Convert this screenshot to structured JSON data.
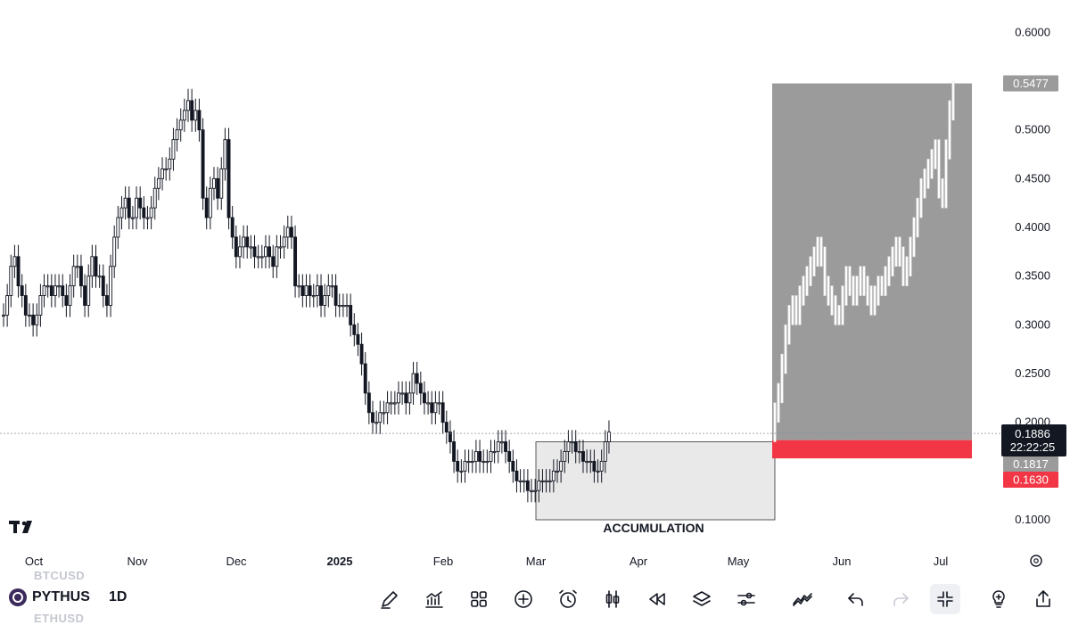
{
  "symbol": "PYTHUS",
  "timeframe": "1D",
  "ghost_symbols": [
    "BTCUSD",
    "ETHUSD"
  ],
  "toolbar": [
    "pen-icon",
    "indicators-icon",
    "grid-icon",
    "plus-circle-icon",
    "alarm-icon",
    "candles-icon",
    "replay-icon",
    "layers-icon",
    "settings-sliders-icon",
    "trend-icon",
    "undo-icon",
    "redo-icon",
    "collapse-icon",
    "lightbulb-icon",
    "share-icon"
  ],
  "chart_data": {
    "type": "candlestick",
    "xlabel": "",
    "ylabel": "",
    "x_ticks": [
      "Oct",
      "Nov",
      "Dec",
      "2025",
      "Feb",
      "Mar",
      "Apr",
      "May",
      "Jun",
      "Jul"
    ],
    "y_ticks": [
      "0.6000",
      "0.5000",
      "0.4500",
      "0.4000",
      "0.3500",
      "0.3000",
      "0.2500",
      "0.2000",
      "0.1000"
    ],
    "ylim": [
      0.1,
      0.6
    ],
    "grid": false,
    "price_labels": {
      "current": "0.1886",
      "countdown": "22:22:25",
      "entry": "0.1817",
      "stop": "0.1630",
      "target": "0.5477"
    },
    "annotation": "ACCUMULATION",
    "accumulation_zone": {
      "from": "Mar",
      "to": "mid-May",
      "low": 0.1,
      "high": 0.18
    },
    "long_position": {
      "entry": 0.1817,
      "stop": 0.163,
      "target": 0.5477
    },
    "colors": {
      "candle": "#131722",
      "projection": "#ffffff",
      "target_zone": "#9b9b9b",
      "stop_zone": "#f23645",
      "box": "#e9e9e9",
      "current_label": "#131722",
      "target_label": "#9b9b9b"
    },
    "series": [
      {
        "values": [
          0.31,
          0.33,
          0.36,
          0.37,
          0.34,
          0.33,
          0.31,
          0.31,
          0.3,
          0.31,
          0.33,
          0.34,
          0.34,
          0.33,
          0.34,
          0.34,
          0.33,
          0.32,
          0.34,
          0.36,
          0.36,
          0.34,
          0.32,
          0.35,
          0.37,
          0.35,
          0.35,
          0.33,
          0.32,
          0.36,
          0.39,
          0.41,
          0.42,
          0.43,
          0.41,
          0.41,
          0.43,
          0.42,
          0.41,
          0.41,
          0.42,
          0.44,
          0.45,
          0.46,
          0.46,
          0.47,
          0.49,
          0.5,
          0.51,
          0.52,
          0.53,
          0.51,
          0.52,
          0.5,
          0.43,
          0.41,
          0.44,
          0.45,
          0.43,
          0.46,
          0.49,
          0.41,
          0.39,
          0.37,
          0.38,
          0.39,
          0.38,
          0.38,
          0.37,
          0.37,
          0.37,
          0.38,
          0.37,
          0.36,
          0.38,
          0.38,
          0.39,
          0.4,
          0.39,
          0.34,
          0.34,
          0.33,
          0.34,
          0.33,
          0.33,
          0.34,
          0.32,
          0.33,
          0.34,
          0.34,
          0.32,
          0.32,
          0.32,
          0.32,
          0.3,
          0.29,
          0.28,
          0.26,
          0.23,
          0.21,
          0.2,
          0.2,
          0.21,
          0.21,
          0.22,
          0.22,
          0.22,
          0.23,
          0.23,
          0.22,
          0.23,
          0.25,
          0.24,
          0.23,
          0.22,
          0.22,
          0.21,
          0.22,
          0.22,
          0.2,
          0.19,
          0.18,
          0.16,
          0.15,
          0.15,
          0.16,
          0.16,
          0.16,
          0.17,
          0.16,
          0.16,
          0.16,
          0.17,
          0.17,
          0.18,
          0.18,
          0.17,
          0.16,
          0.15,
          0.14,
          0.14,
          0.14,
          0.13,
          0.13,
          0.13,
          0.14,
          0.14,
          0.14,
          0.14,
          0.15,
          0.15,
          0.16,
          0.17,
          0.18,
          0.18,
          0.17,
          0.17,
          0.16,
          0.16,
          0.16,
          0.15,
          0.15,
          0.16,
          0.18,
          0.19
        ]
      },
      {
        "name": "",
        "values": [
          0.21,
          0.23,
          0.26,
          0.29,
          0.31,
          0.32,
          0.31,
          0.33,
          0.34,
          0.35,
          0.36,
          0.37,
          0.38,
          0.37,
          0.34,
          0.33,
          0.32,
          0.31,
          0.31,
          0.33,
          0.35,
          0.34,
          0.33,
          0.34,
          0.35,
          0.34,
          0.33,
          0.32,
          0.33,
          0.34,
          0.34,
          0.35,
          0.36,
          0.37,
          0.38,
          0.37,
          0.35,
          0.36,
          0.38,
          0.4,
          0.42,
          0.44,
          0.45,
          0.46,
          0.47,
          0.48,
          0.44,
          0.43,
          0.48,
          0.52,
          0.54
        ]
      }
    ]
  }
}
